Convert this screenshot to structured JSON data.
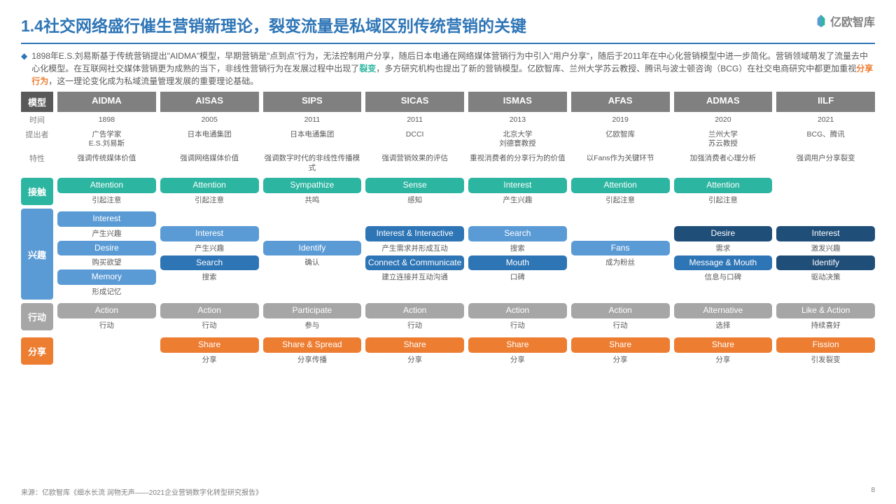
{
  "title": "1.4社交网络盛行催生营销新理论，裂变流量是私域区别传统营销的关键",
  "logo_text": "亿欧智库",
  "description_prefix": "1898年E.S.刘易斯基于传统营销提出\"AIDMA\"模型，早期营销是\"点到点\"行为，无法控制用户分享，随后日本电通在网络媒体营销行为中引入\"用户分享\"，随后于2011年在中心化营销模型中进一步简化。营销领域萌发了流量去中心化模型。在互联网社交媒体营销更为成熟的当下，非线性营销行为在发展过程中出现了",
  "hl1": "裂变",
  "description_mid": "，多方研究机构也提出了新的营销模型。亿欧智库、兰州大学苏云教授、腾讯与波士顿咨询（BCG）在社交电商研究中都更加重视",
  "hl2": "分享行为",
  "description_suffix": "，这一理论变化成为私域流量管理发展的重要理论基础。",
  "header_first": "模型",
  "models": [
    "AIDMA",
    "AISAS",
    "SIPS",
    "SICAS",
    "ISMAS",
    "AFAS",
    "ADMAS",
    "IILF"
  ],
  "meta_labels": {
    "time": "时间",
    "author": "提出者",
    "feature": "特性"
  },
  "meta": {
    "time": [
      "1898",
      "2005",
      "2011",
      "2011",
      "2013",
      "2019",
      "2020",
      "2021"
    ],
    "author": [
      "广告学家\nE.S.刘易斯",
      "日本电通集团",
      "日本电通集团",
      "DCCI",
      "北京大学\n刘德寰教授",
      "亿欧智库",
      "兰州大学\n苏云教授",
      "BCG、腾讯"
    ],
    "feature": [
      "强调传统媒体价值",
      "强调网络媒体价值",
      "强调数字时代的非线性传播模式",
      "强调营销效果的评估",
      "重视消费者的分享行为的价值",
      "以Fans作为关键环节",
      "加强消费者心理分析",
      "强调用户分享裂变"
    ]
  },
  "stages": {
    "contact": "接触",
    "interest": "兴趣",
    "action": "行动",
    "share": "分享"
  },
  "contact": [
    {
      "t": "Attention",
      "s": "引起注意",
      "c": "c-teal"
    },
    {
      "t": "Attention",
      "s": "引起注意",
      "c": "c-teal"
    },
    {
      "t": "Sympathize",
      "s": "共鸣",
      "c": "c-teal"
    },
    {
      "t": "Sense",
      "s": "感知",
      "c": "c-teal"
    },
    {
      "t": "Interest",
      "s": "产生兴趣",
      "c": "c-teal"
    },
    {
      "t": "Attention",
      "s": "引起注意",
      "c": "c-teal"
    },
    {
      "t": "Attention",
      "s": "引起注意",
      "c": "c-teal"
    },
    null
  ],
  "interest": [
    [
      {
        "t": "Interest",
        "s": "产生兴趣",
        "c": "c-blue1"
      },
      {
        "t": "Desire",
        "s": "购买欲望",
        "c": "c-blue1"
      },
      {
        "t": "Memory",
        "s": "形成记忆",
        "c": "c-blue1"
      }
    ],
    [
      {
        "t": "Interest",
        "s": "产生兴趣",
        "c": "c-blue1"
      },
      {
        "t": "Search",
        "s": "搜索",
        "c": "c-blue2"
      }
    ],
    [
      {
        "t": "Identify",
        "s": "确认",
        "c": "c-blue1"
      }
    ],
    [
      {
        "t": "Interest & Interactive",
        "s": "产生需求并形成互动",
        "c": "c-blue2"
      },
      {
        "t": "Connect & Communicate",
        "s": "建立连接并互动沟通",
        "c": "c-blue2"
      }
    ],
    [
      {
        "t": "Search",
        "s": "搜索",
        "c": "c-blue1"
      },
      {
        "t": "Mouth",
        "s": "口碑",
        "c": "c-blue2"
      }
    ],
    [
      {
        "t": "Fans",
        "s": "成为粉丝",
        "c": "c-blue1"
      }
    ],
    [
      {
        "t": "Desire",
        "s": "需求",
        "c": "c-blue3"
      },
      {
        "t": "Message & Mouth",
        "s": "信息与口碑",
        "c": "c-blue2"
      }
    ],
    [
      {
        "t": "Interest",
        "s": "激发兴趣",
        "c": "c-blue3"
      },
      {
        "t": "Identify",
        "s": "驱动决策",
        "c": "c-blue3"
      }
    ]
  ],
  "action": [
    {
      "t": "Action",
      "s": "行动",
      "c": "c-gray"
    },
    {
      "t": "Action",
      "s": "行动",
      "c": "c-gray"
    },
    {
      "t": "Participate",
      "s": "参与",
      "c": "c-gray"
    },
    {
      "t": "Action",
      "s": "行动",
      "c": "c-gray"
    },
    {
      "t": "Action",
      "s": "行动",
      "c": "c-gray"
    },
    {
      "t": "Action",
      "s": "行动",
      "c": "c-gray"
    },
    {
      "t": "Alternative",
      "s": "选择",
      "c": "c-gray"
    },
    {
      "t": "Like & Action",
      "s": "持续喜好",
      "c": "c-gray"
    }
  ],
  "share": [
    null,
    {
      "t": "Share",
      "s": "分享",
      "c": "c-orange"
    },
    {
      "t": "Share & Spread",
      "s": "分享传播",
      "c": "c-orange"
    },
    {
      "t": "Share",
      "s": "分享",
      "c": "c-orange"
    },
    {
      "t": "Share",
      "s": "分享",
      "c": "c-orange"
    },
    {
      "t": "Share",
      "s": "分享",
      "c": "c-orange"
    },
    {
      "t": "Share",
      "s": "分享",
      "c": "c-orange"
    },
    {
      "t": "Fission",
      "s": "引发裂变",
      "c": "c-orange"
    }
  ],
  "source": "来源：亿欧智库《细水长流 润物无声——2021企业营销数字化转型研究报告》",
  "page": "8"
}
